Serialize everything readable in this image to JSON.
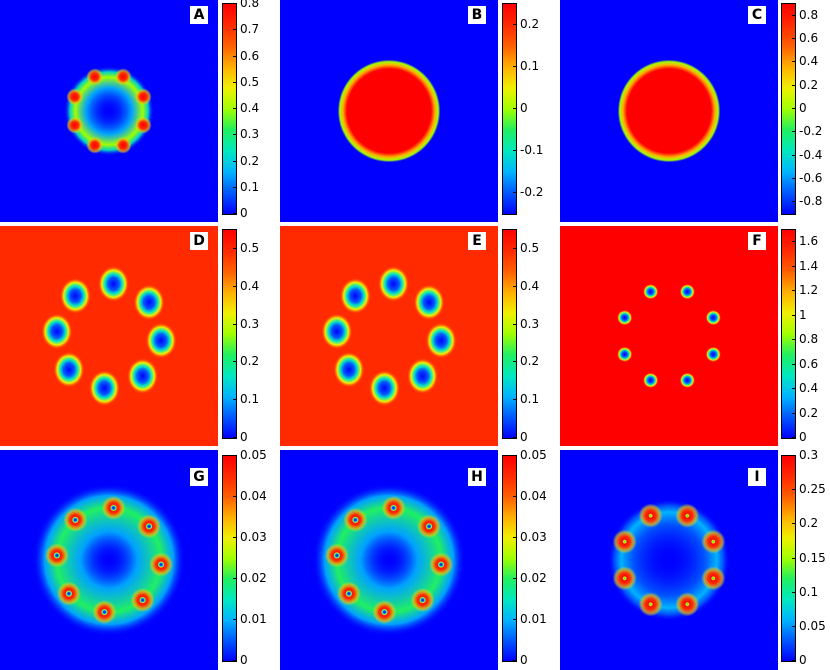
{
  "colors": {
    "colormap": [
      "#0000ff",
      "#0058ff",
      "#00b4ff",
      "#00e8c0",
      "#20f060",
      "#a0ff00",
      "#f0f000",
      "#ffb000",
      "#ff6000",
      "#ff2a00",
      "#ff0000"
    ]
  },
  "chart_data": [
    {
      "panel": "A",
      "type": "heatmap",
      "colorbar": {
        "min": 0,
        "max": 0.8,
        "ticks": [
          "0",
          "0.1",
          "0.2",
          "0.3",
          "0.4",
          "0.5",
          "0.6",
          "0.7",
          "0.8"
        ]
      },
      "background_value": 0.0,
      "features": [
        {
          "kind": "ring",
          "radius": 0.31,
          "width": 0.1,
          "value": 0.42
        },
        {
          "kind": "spots",
          "count": 8,
          "radius": 0.34,
          "size": 0.035,
          "value": 0.8,
          "rotation_deg": 22.5
        }
      ]
    },
    {
      "panel": "B",
      "type": "heatmap",
      "colorbar": {
        "min": -0.25,
        "max": 0.25,
        "ticks": [
          "-0.2",
          "-0.1",
          "0",
          "0.1",
          "0.2"
        ]
      },
      "background_value": -0.25,
      "features": [
        {
          "kind": "disk",
          "radius": 0.42,
          "value": 0.25
        }
      ]
    },
    {
      "panel": "C",
      "type": "heatmap",
      "colorbar": {
        "min": -0.9,
        "max": 0.9,
        "ticks": [
          "-0.8",
          "-0.6",
          "-0.4",
          "-0.2",
          "0",
          "0.2",
          "0.4",
          "0.6",
          "0.8"
        ]
      },
      "background_value": -0.9,
      "features": [
        {
          "kind": "disk",
          "radius": 0.42,
          "value": 0.9
        }
      ]
    },
    {
      "panel": "D",
      "type": "heatmap",
      "colorbar": {
        "min": 0,
        "max": 0.55,
        "ticks": [
          "0",
          "0.1",
          "0.2",
          "0.3",
          "0.4",
          "0.5"
        ]
      },
      "background_value": 0.5,
      "features": [
        {
          "kind": "holes",
          "count": 8,
          "radius": 0.48,
          "size": 0.06,
          "value": 0.0,
          "rotation_deg": 5
        }
      ]
    },
    {
      "panel": "E",
      "type": "heatmap",
      "colorbar": {
        "min": 0,
        "max": 0.55,
        "ticks": [
          "0",
          "0.1",
          "0.2",
          "0.3",
          "0.4",
          "0.5"
        ]
      },
      "background_value": 0.5,
      "features": [
        {
          "kind": "holes",
          "count": 8,
          "radius": 0.48,
          "size": 0.06,
          "value": 0.0,
          "rotation_deg": 5
        }
      ]
    },
    {
      "panel": "F",
      "type": "heatmap",
      "colorbar": {
        "min": 0,
        "max": 1.7,
        "ticks": [
          "0",
          "0.2",
          "0.4",
          "0.6",
          "0.8",
          "1",
          "1.2",
          "1.4",
          "1.6"
        ]
      },
      "background_value": 1.7,
      "features": [
        {
          "kind": "holes",
          "count": 8,
          "radius": 0.44,
          "size": 0.03,
          "value": 0.0,
          "rotation_deg": 22.5
        }
      ]
    },
    {
      "panel": "G",
      "type": "heatmap",
      "colorbar": {
        "min": 0,
        "max": 0.05,
        "ticks": [
          "0",
          "0.01",
          "0.02",
          "0.03",
          "0.04",
          "0.05"
        ]
      },
      "background_value": 0.0,
      "features": [
        {
          "kind": "ring",
          "radius": 0.48,
          "width": 0.22,
          "value": 0.022
        },
        {
          "kind": "spots",
          "count": 8,
          "radius": 0.48,
          "size": 0.05,
          "value": 0.05,
          "rotation_deg": 5
        },
        {
          "kind": "holes",
          "count": 8,
          "radius": 0.48,
          "size": 0.014,
          "value": 0.0,
          "rotation_deg": 5
        }
      ]
    },
    {
      "panel": "H",
      "type": "heatmap",
      "colorbar": {
        "min": 0,
        "max": 0.05,
        "ticks": [
          "0",
          "0.01",
          "0.02",
          "0.03",
          "0.04",
          "0.05"
        ]
      },
      "background_value": 0.0,
      "features": [
        {
          "kind": "ring",
          "radius": 0.48,
          "width": 0.22,
          "value": 0.022
        },
        {
          "kind": "spots",
          "count": 8,
          "radius": 0.48,
          "size": 0.05,
          "value": 0.05,
          "rotation_deg": 5
        },
        {
          "kind": "holes",
          "count": 8,
          "radius": 0.48,
          "size": 0.014,
          "value": 0.0,
          "rotation_deg": 5
        }
      ]
    },
    {
      "panel": "I",
      "type": "heatmap",
      "colorbar": {
        "min": 0,
        "max": 0.3,
        "ticks": [
          "0",
          "0.05",
          "0.1",
          "0.15",
          "0.2",
          "0.25",
          "0.3"
        ]
      },
      "background_value": 0.0,
      "features": [
        {
          "kind": "ring",
          "radius": 0.44,
          "width": 0.12,
          "value": 0.06
        },
        {
          "kind": "spots",
          "count": 8,
          "radius": 0.44,
          "size": 0.05,
          "value": 0.3,
          "rotation_deg": 22.5
        },
        {
          "kind": "holes",
          "count": 8,
          "radius": 0.44,
          "size": 0.012,
          "value": 0.12,
          "rotation_deg": 22.5
        }
      ]
    }
  ]
}
